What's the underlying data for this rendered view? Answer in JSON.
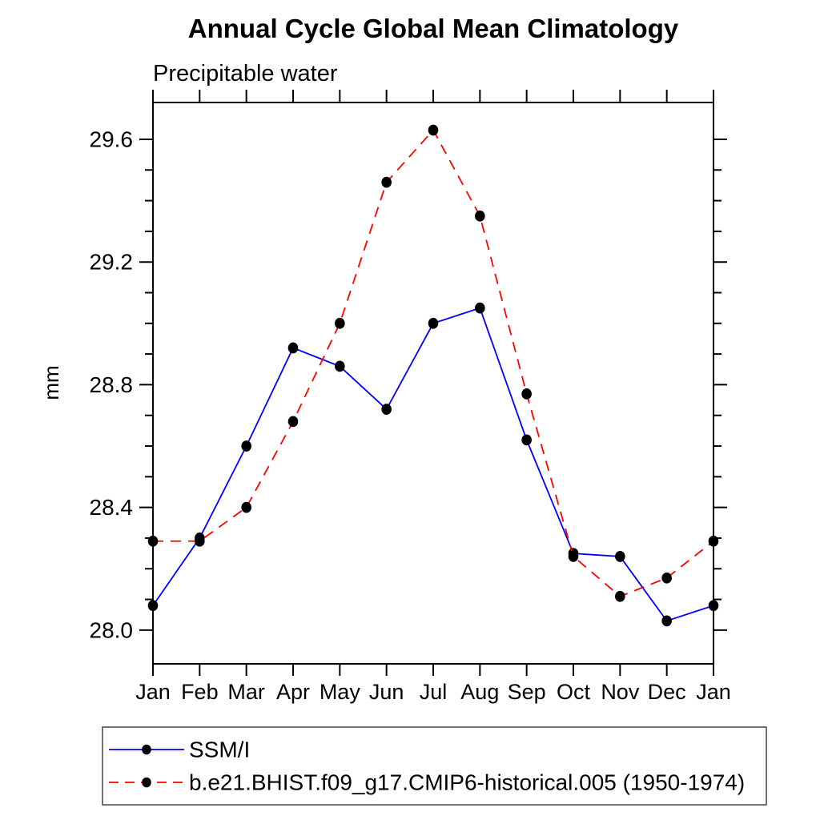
{
  "chart_data": {
    "type": "line",
    "title": "Annual Cycle Global Mean Climatology",
    "subtitle": "Precipitable water",
    "ylabel": "mm",
    "ylim": [
      27.89,
      29.72
    ],
    "yticks_major": [
      28.0,
      28.4,
      28.8,
      29.2,
      29.6
    ],
    "ytick_minor_step": 0.1,
    "grid": false,
    "legend_position": "bottom",
    "categories": [
      "Jan",
      "Feb",
      "Mar",
      "Apr",
      "May",
      "Jun",
      "Jul",
      "Aug",
      "Sep",
      "Oct",
      "Nov",
      "Dec",
      "Jan"
    ],
    "series": [
      {
        "name": "SSM/I",
        "color": "#0000ff",
        "line_style": "solid",
        "marker": "filled-black-circle",
        "values": [
          28.08,
          28.3,
          28.6,
          28.92,
          28.86,
          28.72,
          29.0,
          29.05,
          28.62,
          28.25,
          28.24,
          28.03,
          28.08
        ]
      },
      {
        "name": "b.e21.BHIST.f09_g17.CMIP6-historical.005 (1950-1974)",
        "color": "#ff0000",
        "line_style": "dashed",
        "marker": "filled-black-circle",
        "values": [
          28.29,
          28.29,
          28.4,
          28.68,
          29.0,
          29.46,
          29.63,
          29.35,
          28.77,
          28.24,
          28.11,
          28.17,
          28.29
        ]
      }
    ],
    "marker_color": "#000000",
    "frame_color": "#000000",
    "legend_border_color": "#444444"
  }
}
